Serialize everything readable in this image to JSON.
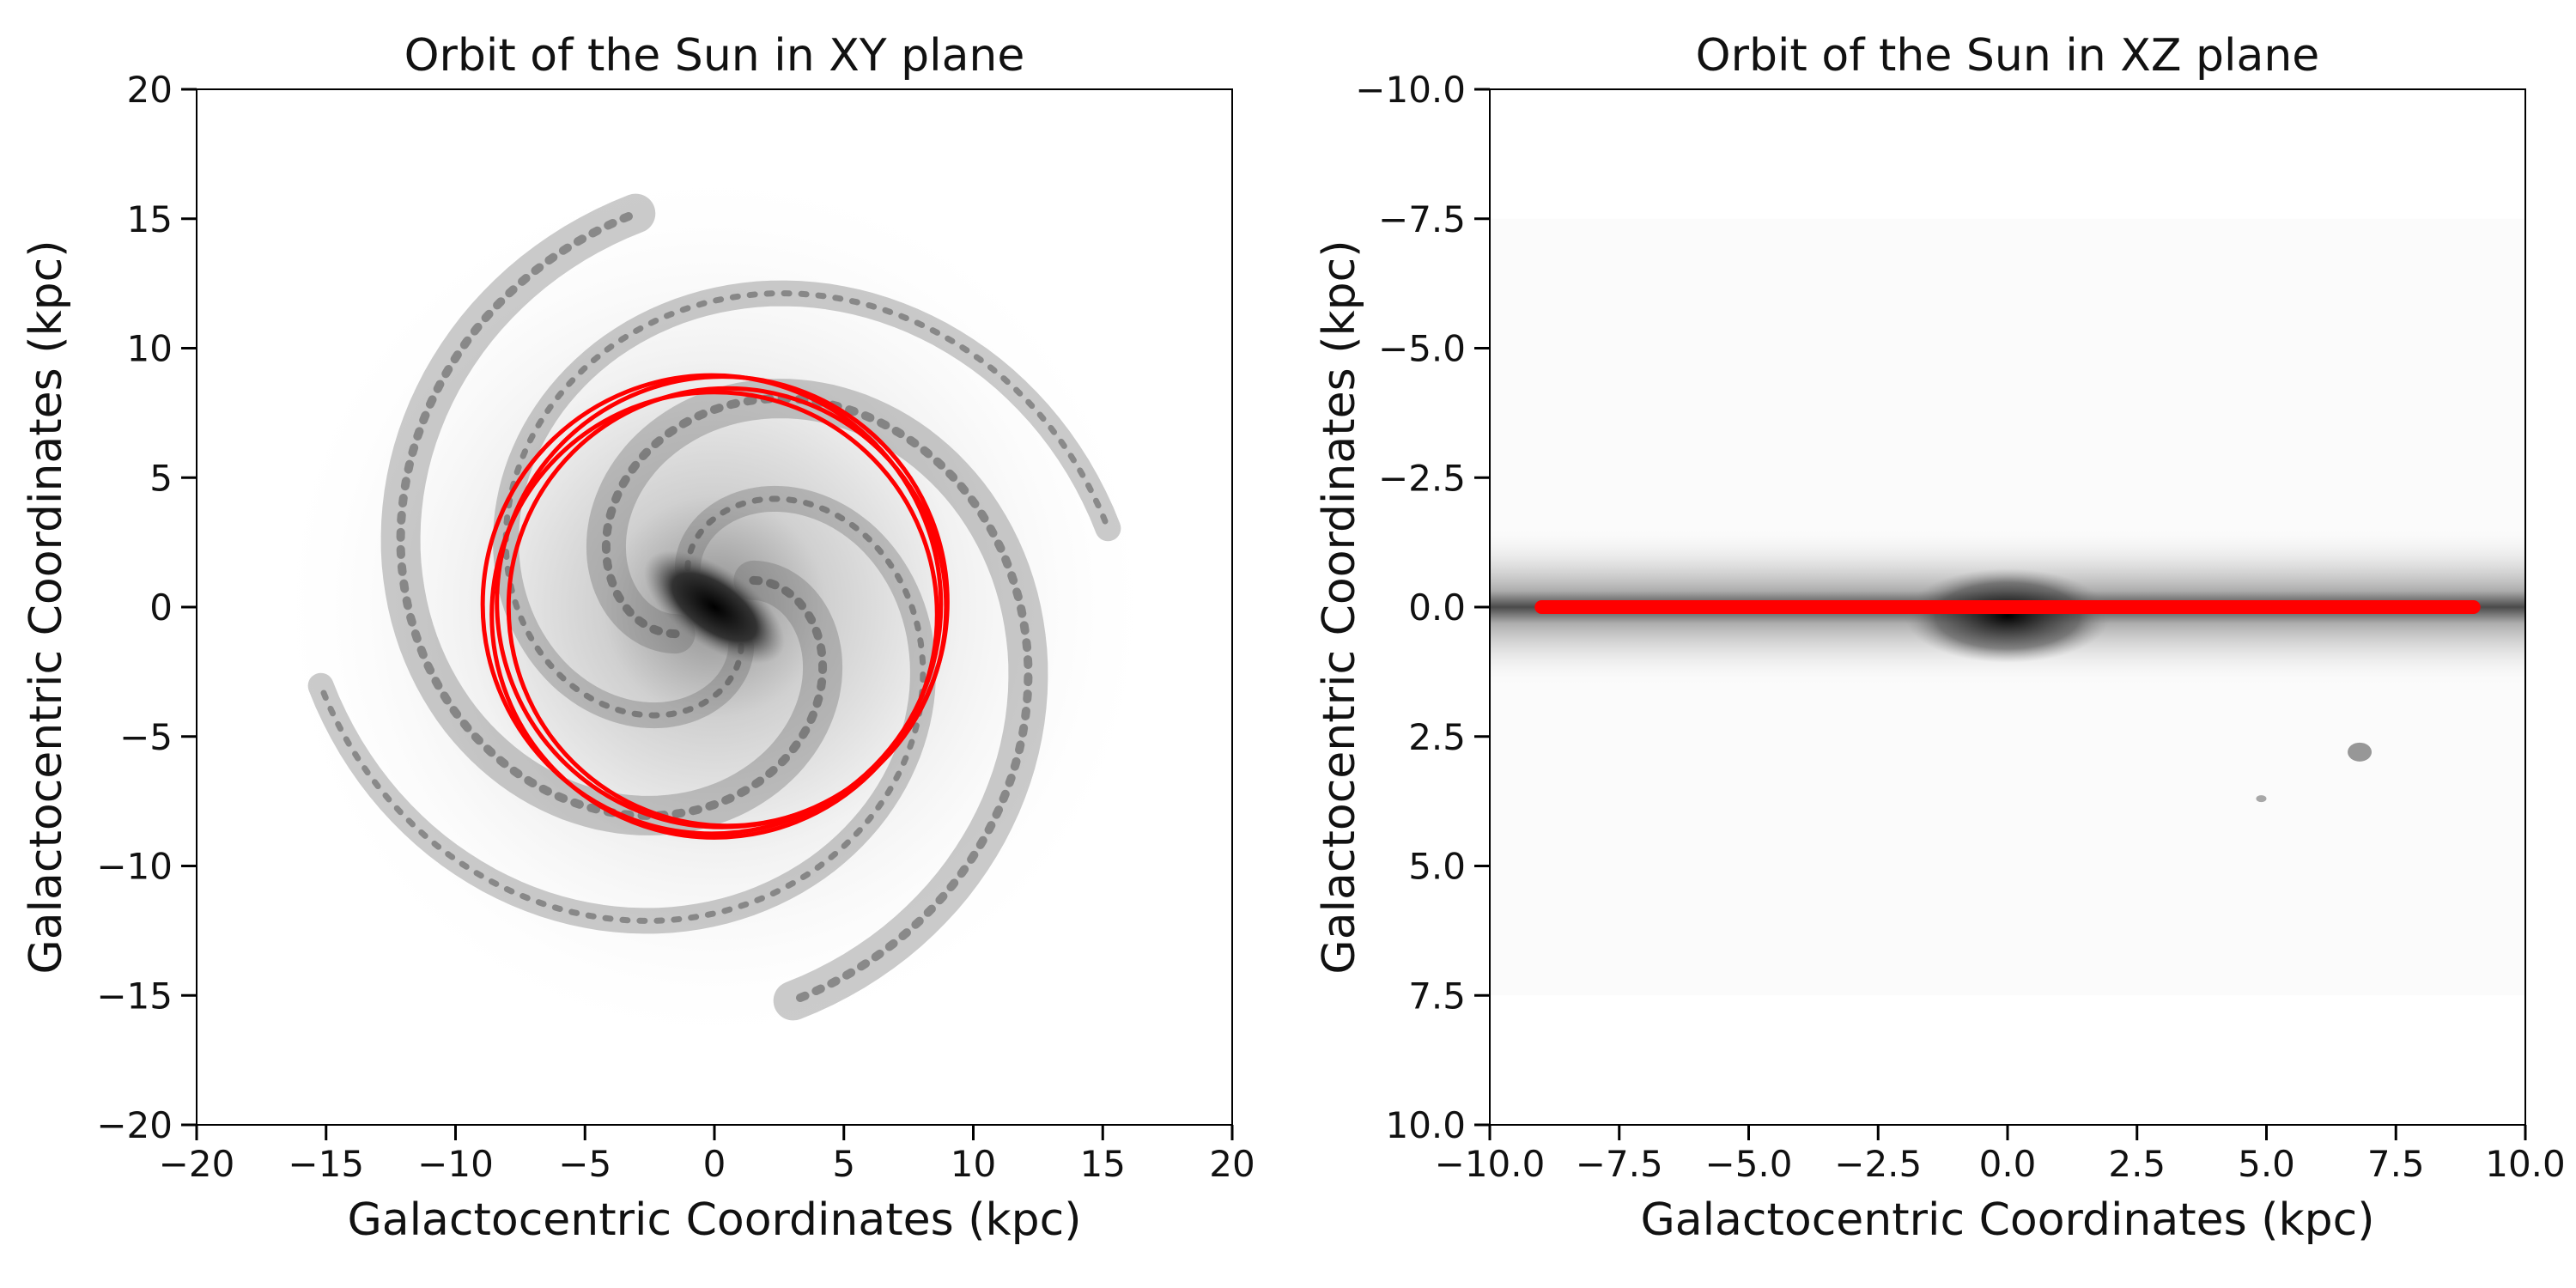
{
  "chart_data": [
    {
      "type": "line",
      "title": "Orbit of the Sun in XY plane",
      "xlabel": "Galactocentric Coordinates (kpc)",
      "ylabel": "Galactocentric Coordinates (kpc)",
      "xlim": [
        -20,
        20
      ],
      "ylim": [
        -20,
        20
      ],
      "y_inverted": false,
      "xticks": [
        -20,
        -15,
        -10,
        -5,
        0,
        5,
        10,
        15,
        20
      ],
      "yticks": [
        -20,
        -15,
        -10,
        -5,
        0,
        5,
        10,
        15,
        20
      ],
      "xtick_labels": [
        "−20",
        "−15",
        "−10",
        "−5",
        "0",
        "5",
        "10",
        "15",
        "20"
      ],
      "ytick_labels": [
        "−20",
        "−15",
        "−10",
        "−5",
        "0",
        "5",
        "10",
        "15",
        "20"
      ],
      "background": "grayscale face-on spiral galaxy image",
      "series": [
        {
          "color": "#ff0000",
          "orbits": [
            {
              "cx": 0.3,
              "cy": 0.2,
              "r": 8.7
            },
            {
              "cx": 0.5,
              "cy": 0.0,
              "r": 8.45
            },
            {
              "cx": 0.0,
              "cy": -0.3,
              "r": 8.6
            },
            {
              "cx": -0.1,
              "cy": 0.1,
              "r": 8.85
            }
          ]
        }
      ]
    },
    {
      "type": "line",
      "title": "Orbit of the Sun in XZ plane",
      "xlabel": "Galactocentric Coordinates (kpc)",
      "ylabel": "Galactocentric Coordinates (kpc)",
      "xlim": [
        -10,
        10
      ],
      "ylim": [
        -10,
        10
      ],
      "y_inverted": true,
      "xticks": [
        -10,
        -7.5,
        -5,
        -2.5,
        0,
        2.5,
        5,
        7.5,
        10
      ],
      "yticks": [
        -10,
        -7.5,
        -5,
        -2.5,
        0,
        2.5,
        5,
        7.5,
        10
      ],
      "xtick_labels": [
        "−10.0",
        "−7.5",
        "−5.0",
        "−2.5",
        "0.0",
        "2.5",
        "5.0",
        "7.5",
        "10.0"
      ],
      "ytick_labels": [
        "−10.0",
        "−7.5",
        "−5.0",
        "−2.5",
        "0.0",
        "2.5",
        "5.0",
        "7.5",
        "10.0"
      ],
      "background": "grayscale edge-on galaxy image",
      "series": [
        {
          "color": "#ff0000",
          "x": [
            -9.0,
            9.0
          ],
          "z": [
            0.0,
            0.0
          ]
        }
      ]
    }
  ]
}
